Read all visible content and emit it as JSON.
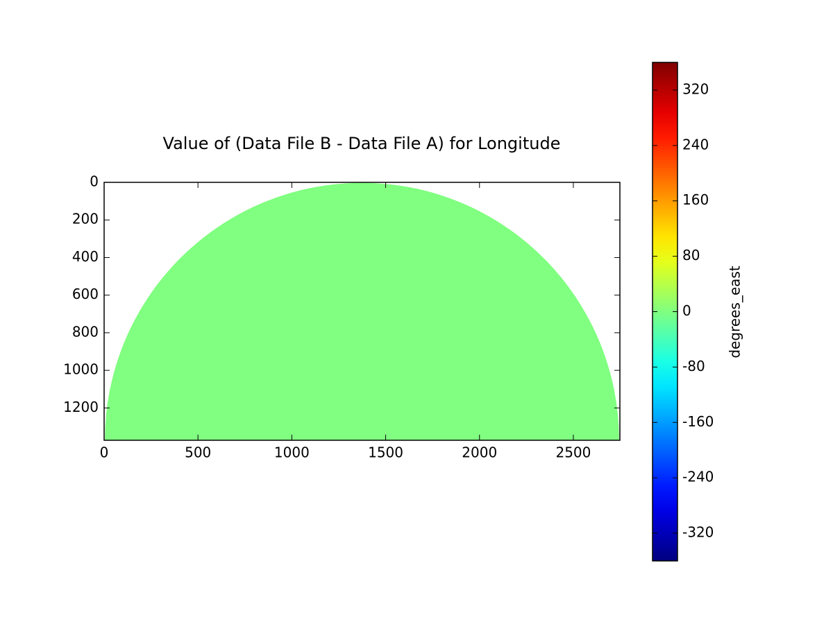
{
  "chart_data": {
    "type": "heatmap",
    "title": "Value of (Data File B - Data File A) for Longitude",
    "xlim": [
      0,
      2748
    ],
    "ylim": [
      1372,
      0
    ],
    "xticks": [
      0,
      500,
      1000,
      1500,
      2000,
      2500
    ],
    "yticks": [
      0,
      200,
      400,
      600,
      800,
      1000,
      1200
    ],
    "field": {
      "center": [
        1374,
        1372
      ],
      "radius": 1370,
      "value": 0
    },
    "colormap": "jet",
    "clim": [
      -360,
      360
    ],
    "cticks": [
      -320,
      -240,
      -160,
      -80,
      0,
      80,
      160,
      240,
      320
    ],
    "colorbar_label": "degrees_east"
  }
}
